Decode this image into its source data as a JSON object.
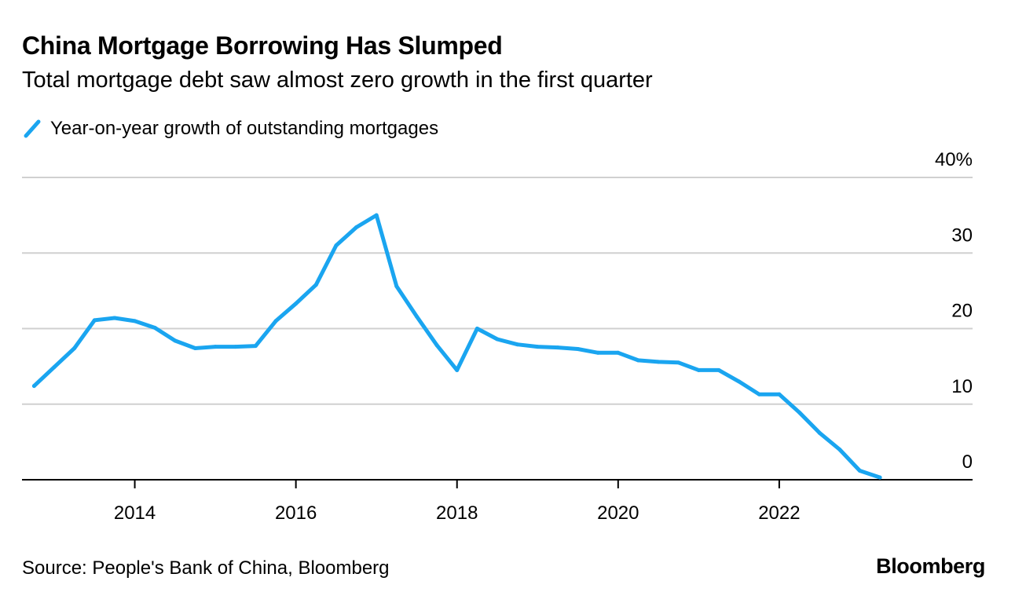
{
  "title": "China Mortgage Borrowing Has Slumped",
  "subtitle": "Total mortgage debt saw almost zero growth in the first quarter",
  "legend": {
    "label": "Year-on-year growth of outstanding mortgages"
  },
  "source": "Source: People's Bank of China, Bloomberg",
  "brand": "Bloomberg",
  "colors": {
    "series": "#1aa5f0",
    "grid": "#d0d0d0",
    "axis": "#000000"
  },
  "chart_data": {
    "type": "line",
    "title": "China Mortgage Borrowing Has Slumped",
    "ylabel": "Year-on-year growth of outstanding mortgages (%)",
    "xlabel": "",
    "ylim": [
      0,
      40
    ],
    "yticks": [
      0,
      10,
      20,
      30,
      40
    ],
    "ytick_labels": [
      "0",
      "10",
      "20",
      "30",
      "40%"
    ],
    "xlim": [
      2012.6,
      2024.4
    ],
    "xticks": [
      2014,
      2016,
      2018,
      2020,
      2022
    ],
    "xtick_labels": [
      "2014",
      "2016",
      "2018",
      "2020",
      "2022"
    ],
    "y_axis_position": "right",
    "grid": true,
    "series": [
      {
        "name": "Year-on-year growth of outstanding mortgages",
        "x": [
          2012.75,
          2013.0,
          2013.25,
          2013.5,
          2013.75,
          2014.0,
          2014.25,
          2014.5,
          2014.75,
          2015.0,
          2015.25,
          2015.5,
          2015.75,
          2016.0,
          2016.25,
          2016.5,
          2016.75,
          2017.0,
          2017.25,
          2017.5,
          2017.75,
          2018.0,
          2018.25,
          2018.5,
          2018.75,
          2019.0,
          2019.25,
          2019.5,
          2019.75,
          2020.0,
          2020.25,
          2020.5,
          2020.75,
          2021.0,
          2021.25,
          2021.5,
          2021.75,
          2022.0,
          2022.25,
          2022.5,
          2022.75,
          2023.0,
          2023.25
        ],
        "values": [
          12.4,
          14.9,
          17.4,
          21.1,
          21.4,
          21.0,
          20.1,
          18.4,
          17.4,
          17.6,
          17.6,
          17.7,
          21.0,
          23.3,
          25.8,
          31.0,
          33.4,
          35.0,
          25.6,
          21.6,
          17.8,
          14.5,
          20.0,
          18.6,
          17.9,
          17.6,
          17.5,
          17.3,
          16.8,
          16.8,
          15.8,
          15.6,
          15.5,
          14.5,
          14.5,
          13.0,
          11.3,
          11.3,
          8.9,
          6.2,
          4.0,
          1.2,
          0.3
        ]
      }
    ]
  }
}
